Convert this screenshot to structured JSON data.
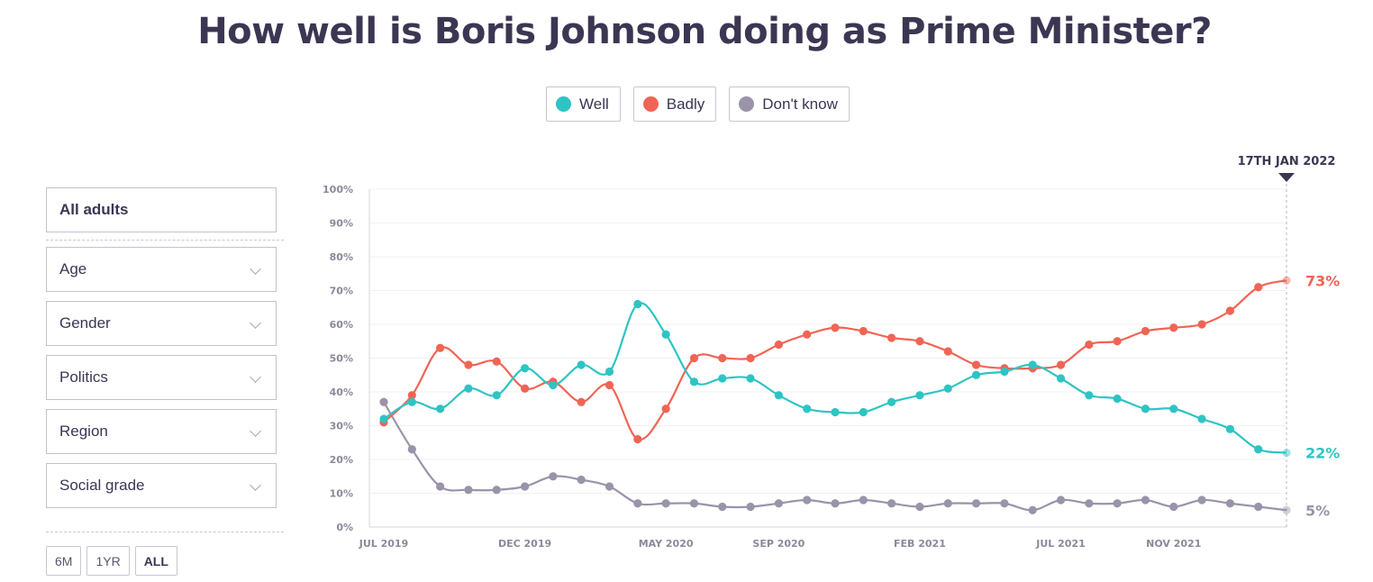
{
  "title": "How well is Boris Johnson doing as Prime Minister?",
  "legend": [
    {
      "label": "Well",
      "color": "#2ec4c4"
    },
    {
      "label": "Badly",
      "color": "#f06455"
    },
    {
      "label": "Don't know",
      "color": "#9a93a9"
    }
  ],
  "filters": {
    "selected": "All adults",
    "dropdowns": [
      "Age",
      "Gender",
      "Politics",
      "Region",
      "Social grade"
    ]
  },
  "ranges": {
    "items": [
      "6M",
      "1YR",
      "ALL"
    ],
    "active": "ALL"
  },
  "chart_data": {
    "type": "line",
    "marker_date": "17TH JAN 2022",
    "y_ticks": [
      "0%",
      "10%",
      "20%",
      "30%",
      "40%",
      "50%",
      "60%",
      "70%",
      "80%",
      "90%",
      "100%"
    ],
    "ylim": [
      0,
      100
    ],
    "x_tick_labels": [
      {
        "label": "JUL 2019",
        "month": 0
      },
      {
        "label": "DEC 2019",
        "month": 5
      },
      {
        "label": "MAY 2020",
        "month": 10
      },
      {
        "label": "SEP 2020",
        "month": 14
      },
      {
        "label": "FEB 2021",
        "month": 19
      },
      {
        "label": "JUL 2021",
        "month": 24
      },
      {
        "label": "NOV 2021",
        "month": 28
      }
    ],
    "x": [
      0,
      1,
      2,
      3,
      4,
      5,
      6,
      7,
      8,
      9,
      10,
      11,
      12,
      13,
      14,
      15,
      16,
      17,
      18,
      19,
      20,
      21,
      22,
      23,
      24,
      25,
      26,
      27,
      28,
      29,
      30,
      31,
      32
    ],
    "xlim": [
      0,
      32
    ],
    "series": [
      {
        "name": "Well",
        "color": "#2ec4c4",
        "final_label": "22%",
        "values": [
          32,
          37,
          35,
          41,
          39,
          47,
          42,
          48,
          46,
          66,
          57,
          43,
          44,
          44,
          39,
          35,
          34,
          34,
          37,
          39,
          41,
          45,
          46,
          48,
          44,
          39,
          38,
          35,
          35,
          32,
          29,
          23,
          22
        ]
      },
      {
        "name": "Badly",
        "color": "#f06455",
        "final_label": "73%",
        "values": [
          31,
          39,
          53,
          48,
          49,
          41,
          43,
          37,
          42,
          26,
          35,
          50,
          50,
          50,
          54,
          57,
          59,
          58,
          56,
          55,
          52,
          48,
          47,
          47,
          48,
          54,
          55,
          58,
          59,
          60,
          64,
          71,
          73
        ]
      },
      {
        "name": "Don't know",
        "color": "#9a93a9",
        "final_label": "5%",
        "values": [
          37,
          23,
          12,
          11,
          11,
          12,
          15,
          14,
          12,
          7,
          7,
          7,
          6,
          6,
          7,
          8,
          7,
          8,
          7,
          6,
          7,
          7,
          7,
          5,
          8,
          7,
          7,
          8,
          6,
          8,
          7,
          6,
          5
        ]
      }
    ]
  }
}
